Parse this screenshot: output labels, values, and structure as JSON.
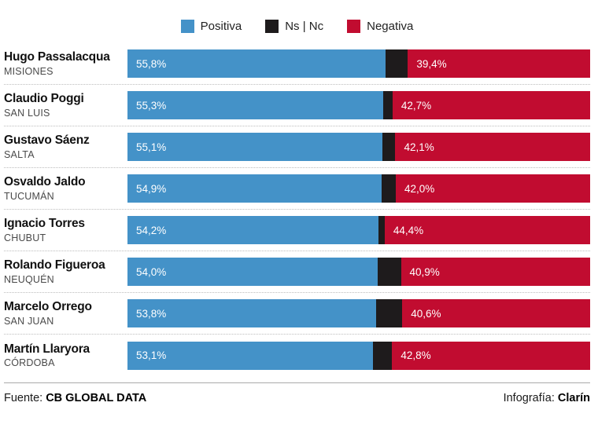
{
  "colors": {
    "positive": "#4492C8",
    "nsnc": "#1E1B1C",
    "negative": "#C10C30"
  },
  "legend": {
    "items": [
      {
        "label": "Positiva",
        "color_key": "positive"
      },
      {
        "label": "Ns | Nc",
        "color_key": "nsnc"
      },
      {
        "label": "Negativa",
        "color_key": "negative"
      }
    ]
  },
  "chart_data": {
    "type": "bar",
    "orientation": "horizontal",
    "stacked": true,
    "unit": "%",
    "xlim": [
      0,
      100
    ],
    "legend_position": "top",
    "series_names": [
      "Positiva",
      "Ns | Nc",
      "Negativa"
    ],
    "rows": [
      {
        "name": "Hugo Passalacqua",
        "region": "MISIONES",
        "positive": 55.8,
        "positive_label": "55,8%",
        "nsnc": 4.8,
        "negative": 39.4,
        "negative_label": "39,4%"
      },
      {
        "name": "Claudio Poggi",
        "region": "SAN LUIS",
        "positive": 55.3,
        "positive_label": "55,3%",
        "nsnc": 2.0,
        "negative": 42.7,
        "negative_label": "42,7%"
      },
      {
        "name": "Gustavo Sáenz",
        "region": "SALTA",
        "positive": 55.1,
        "positive_label": "55,1%",
        "nsnc": 2.8,
        "negative": 42.1,
        "negative_label": "42,1%"
      },
      {
        "name": "Osvaldo Jaldo",
        "region": "TUCUMÁN",
        "positive": 54.9,
        "positive_label": "54,9%",
        "nsnc": 3.1,
        "negative": 42.0,
        "negative_label": "42,0%"
      },
      {
        "name": "Ignacio Torres",
        "region": "CHUBUT",
        "positive": 54.2,
        "positive_label": "54,2%",
        "nsnc": 1.4,
        "negative": 44.4,
        "negative_label": "44,4%"
      },
      {
        "name": "Rolando Figueroa",
        "region": "NEUQUÉN",
        "positive": 54.0,
        "positive_label": "54,0%",
        "nsnc": 5.1,
        "negative": 40.9,
        "negative_label": "40,9%"
      },
      {
        "name": "Marcelo Orrego",
        "region": "SAN JUAN",
        "positive": 53.8,
        "positive_label": "53,8%",
        "nsnc": 5.6,
        "negative": 40.6,
        "negative_label": "40,6%"
      },
      {
        "name": "Martín Llaryora",
        "region": "CÓRDOBA",
        "positive": 53.1,
        "positive_label": "53,1%",
        "nsnc": 4.1,
        "negative": 42.8,
        "negative_label": "42,8%"
      }
    ]
  },
  "footer": {
    "source_label": "Fuente:",
    "source_value": "CB GLOBAL DATA",
    "credit_label": "Infografía:",
    "credit_value": "Clarín"
  }
}
